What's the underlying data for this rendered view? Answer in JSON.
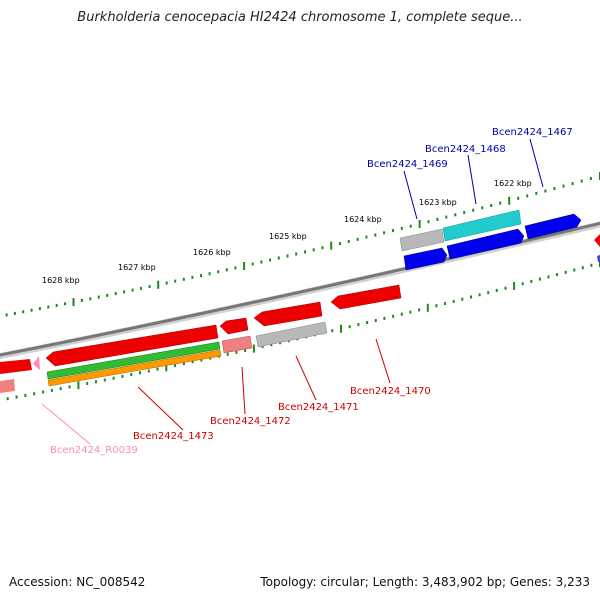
{
  "title": "Burkholderia cenocepacia HI2424 chromosome 1, complete seque...",
  "footer": {
    "accession": "Accession: NC_008542",
    "summary": "Topology: circular; Length: 3,483,902 bp; Genes: 3,233"
  },
  "colors": {
    "backbone": "#808080",
    "tick": "#1a8a1a",
    "cds_red": "#ff0000",
    "cds_light_red": "#f08080",
    "cds_gray": "#b0b0b0",
    "cds_cyan": "#20c8c8",
    "cds_blue": "#0000ee",
    "gene_green": "#33bb33",
    "gene_orange": "#ff9900",
    "label_blue": "#0000aa",
    "label_red": "#cc0000",
    "label_pink": "#ff88bb"
  },
  "scale_labels": [
    {
      "kbp": 1628,
      "text": "1628 kbp"
    },
    {
      "kbp": 1627,
      "text": "1627 kbp"
    },
    {
      "kbp": 1626,
      "text": "1626 kbp"
    },
    {
      "kbp": 1625,
      "text": "1625 kbp"
    },
    {
      "kbp": 1624,
      "text": "1624 kbp"
    },
    {
      "kbp": 1623,
      "text": "1623 kbp"
    },
    {
      "kbp": 1622,
      "text": "1622 kbp"
    }
  ],
  "gene_labels": [
    {
      "id": "Bcen2424_1467",
      "color": "label_blue"
    },
    {
      "id": "Bcen2424_1468",
      "color": "label_blue"
    },
    {
      "id": "Bcen2424_1469",
      "color": "label_blue"
    },
    {
      "id": "Bcen2424_1470",
      "color": "label_red"
    },
    {
      "id": "Bcen2424_1471",
      "color": "label_red"
    },
    {
      "id": "Bcen2424_1472",
      "color": "label_red"
    },
    {
      "id": "Bcen2424_1473",
      "color": "label_red"
    },
    {
      "id": "Bcen2424_R0039",
      "color": "label_pink"
    }
  ]
}
